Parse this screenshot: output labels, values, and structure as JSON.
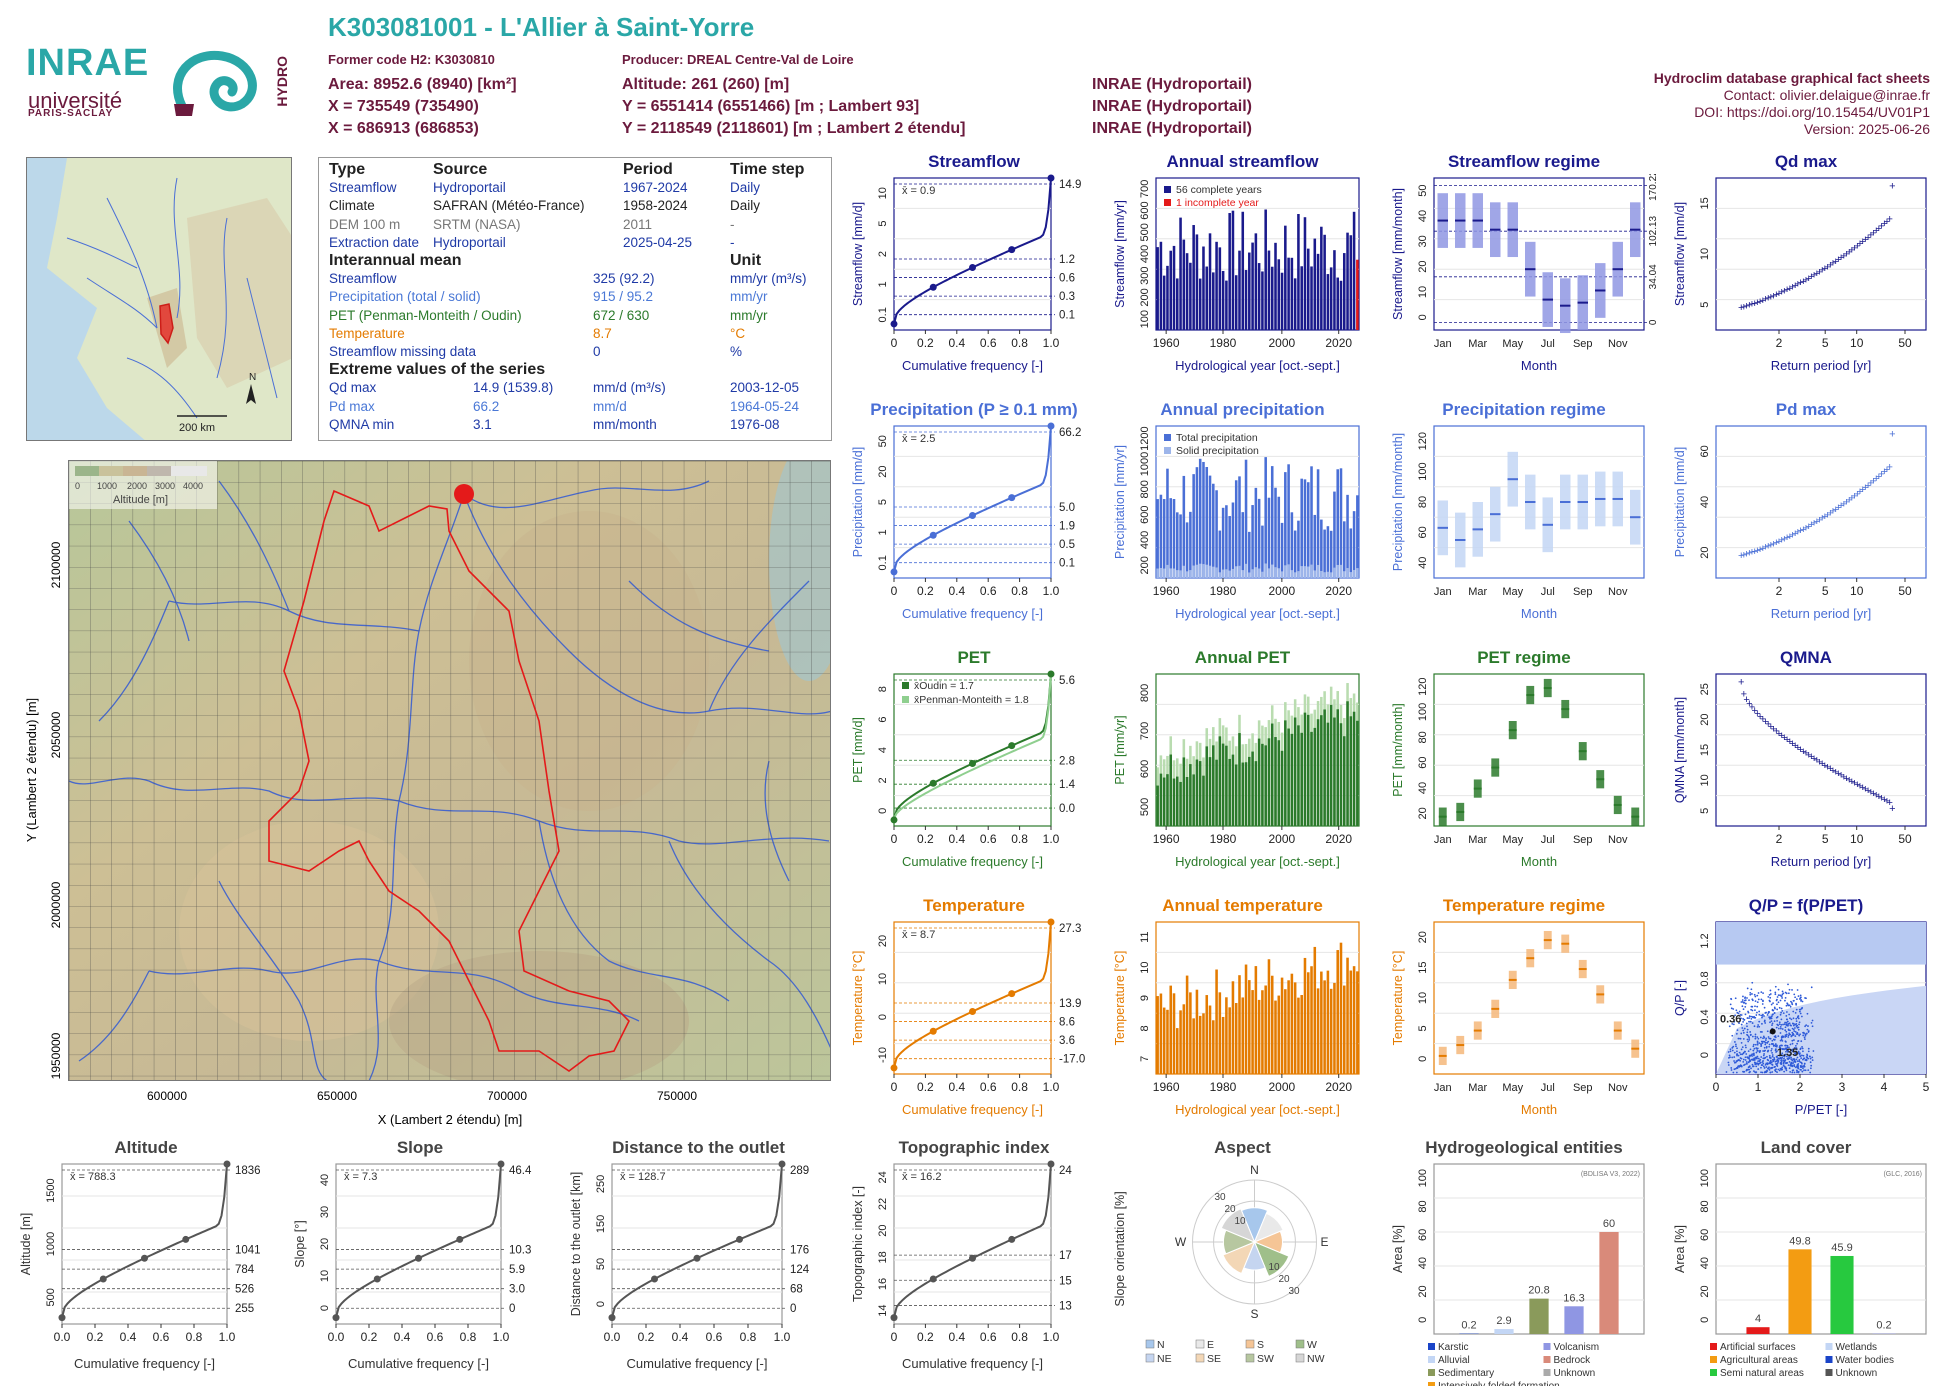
{
  "header": {
    "title": "K303081001 - L'Allier à Saint-Yorre",
    "former_code": "Former code H2: K3030810",
    "producer": "Producer: DREAL Centre-Val de Loire",
    "area": "Area: 8952.6 (8940) [km²]",
    "x93": "X = 735549 (735490)",
    "x2e": "X = 686913 (686853)",
    "altitude": "Altitude: 261 (260) [m]",
    "y93": "Y = 6551414 (6551466) [m ; Lambert 93]",
    "y2e": "Y = 2118549 (2118601) [m ; Lambert 2 étendu]",
    "src1": "INRAE (Hydroportail)",
    "src2": "INRAE (Hydroportail)",
    "src3": "INRAE (Hydroportail)",
    "db": "Hydroclim database graphical fact sheets",
    "contact": "Contact: olivier.delaigue@inrae.fr",
    "doi": "DOI: https://doi.org/10.15454/UV01P1",
    "version": "Version: 2025-06-26"
  },
  "logos": {
    "inrae": "INRAE",
    "univ": "université",
    "ps": "PARIS-SACLAY",
    "hydro": "HYDRO"
  },
  "minimap": {
    "scale": "200 km",
    "north": "N"
  },
  "info": {
    "head": [
      "Type",
      "Source",
      "Period",
      "Time step"
    ],
    "rows": [
      [
        "Streamflow",
        "Hydroportail",
        "1967-2024",
        "Daily"
      ],
      [
        "Climate",
        "SAFRAN (Météo-France)",
        "1958-2024",
        "Daily"
      ],
      [
        "DEM 100 m",
        "SRTM (NASA)",
        "2011",
        "-"
      ],
      [
        "Extraction date",
        "Hydroportail",
        "2025-04-25",
        "-"
      ]
    ],
    "mean_title": "Interannual mean",
    "unit_title": "Unit",
    "mean": [
      [
        "Streamflow",
        "325 (92.2)",
        "mm/yr (m³/s)"
      ],
      [
        "Precipitation (total / solid)",
        "915 / 95.2",
        "mm/yr"
      ],
      [
        "PET (Penman-Monteith / Oudin)",
        "672 / 630",
        "mm/yr"
      ],
      [
        "Temperature",
        "8.7",
        "°C"
      ],
      [
        "Streamflow missing data",
        "0",
        "%"
      ]
    ],
    "ext_title": "Extreme values of the series",
    "ext": [
      [
        "Qd max",
        "14.9 (1539.8)",
        "mm/d (m³/s)",
        "2003-12-05"
      ],
      [
        "Pd max",
        "66.2",
        "mm/d",
        "1964-05-24"
      ],
      [
        "QMNA min",
        "3.1",
        "mm/month",
        "1976-08"
      ]
    ]
  },
  "bigmap": {
    "legend_ticks": [
      "0",
      "1000",
      "2000",
      "3000",
      "4000"
    ],
    "legend_title": "Altitude [m]",
    "xticks": [
      "600000",
      "650000",
      "700000",
      "750000"
    ],
    "yticks": [
      "2100000",
      "2050000",
      "2000000",
      "1950000"
    ],
    "xlabel": "X (Lambert 2 étendu) [m]",
    "ylabel": "Y (Lambert 2 étendu) [m]"
  },
  "colors": {
    "streamflow": "#1a1a8c",
    "precip": "#4a6fd6",
    "pet": "#2b7a2b",
    "temp": "#e47b00",
    "grey": "#555555",
    "frame": "#7a8fd6"
  },
  "chart_data": [
    {
      "id": "streamflow-fdc",
      "type": "line",
      "title": "Streamflow",
      "ylabel": "Streamflow [mm/d]",
      "xlabel": "Cumulative frequency [-]",
      "mean_label": "x̄ = 0.9",
      "right_ticks": [
        "14.9",
        "1.2",
        "0.6",
        "0.3",
        "0.1"
      ],
      "xticks": [
        "0",
        "0.2",
        "0.4",
        "0.6",
        "0.8",
        "1.0"
      ],
      "yticks": [
        "0.1",
        "1",
        "2",
        "5",
        "10"
      ]
    },
    {
      "id": "annual-streamflow",
      "type": "bar",
      "title": "Annual streamflow",
      "ylabel": "Streamflow [mm/yr]",
      "xlabel": "Hydrological year [oct.-sept.]",
      "legend": [
        "56 complete years",
        "1 incomplete year"
      ],
      "xticks": [
        "1960",
        "1980",
        "2000",
        "2020"
      ],
      "yticks": [
        "100",
        "200",
        "300",
        "400",
        "500",
        "600",
        "700"
      ]
    },
    {
      "id": "streamflow-regime",
      "type": "bar",
      "title": "Streamflow regime",
      "ylabel": "Streamflow [mm/month]",
      "xlabel": "Month",
      "months": [
        "Jan",
        "Mar",
        "May",
        "Jul",
        "Sep",
        "Nov"
      ],
      "medians": [
        36,
        36,
        36,
        33,
        33,
        20,
        10,
        8,
        9,
        13,
        20,
        33
      ],
      "yticks": [
        "0",
        "10",
        "20",
        "30",
        "40",
        "50"
      ],
      "right_ticks": [
        "170.22",
        "102.13",
        "34.04",
        "0"
      ]
    },
    {
      "id": "qd-max",
      "type": "scatter",
      "title": "Qd max",
      "ylabel": "Streamflow [mm/d]",
      "xlabel": "Return period [yr]",
      "xticks": [
        "2",
        "5",
        "10",
        "50"
      ],
      "yticks": [
        "5",
        "10",
        "15"
      ]
    },
    {
      "id": "precip-fdc",
      "type": "line",
      "title": "Precipitation (P ≥ 0.1 mm)",
      "ylabel": "Precipitation [mm/d]",
      "xlabel": "Cumulative frequency [-]",
      "mean_label": "x̄ = 2.5",
      "right_ticks": [
        "66.2",
        "5.0",
        "1.9",
        "0.5",
        "0.1"
      ],
      "xticks": [
        "0",
        "0.2",
        "0.4",
        "0.6",
        "0.8",
        "1.0"
      ],
      "yticks": [
        "0.1",
        "1",
        "5",
        "20",
        "50"
      ]
    },
    {
      "id": "annual-precip",
      "type": "bar",
      "title": "Annual precipitation",
      "ylabel": "Precipitation [mm/yr]",
      "xlabel": "Hydrological year [oct.-sept.]",
      "legend": [
        "Total precipitation",
        "Solid precipitation"
      ],
      "xticks": [
        "1960",
        "1980",
        "2000",
        "2020"
      ],
      "yticks": [
        "200",
        "400",
        "600",
        "800",
        "1000",
        "1200"
      ]
    },
    {
      "id": "precip-regime",
      "type": "bar",
      "title": "Precipitation regime",
      "ylabel": "Precipitation [mm/month]",
      "xlabel": "Month",
      "months": [
        "Jan",
        "Mar",
        "May",
        "Jul",
        "Sep",
        "Nov"
      ],
      "medians": [
        63,
        55,
        62,
        72,
        95,
        80,
        65,
        80,
        80,
        82,
        82,
        70
      ],
      "yticks": [
        "40",
        "60",
        "80",
        "100",
        "120"
      ]
    },
    {
      "id": "pd-max",
      "type": "scatter",
      "title": "Pd max",
      "ylabel": "Precipitation [mm/d]",
      "xlabel": "Return period [yr]",
      "xticks": [
        "2",
        "5",
        "10",
        "50"
      ],
      "yticks": [
        "20",
        "40",
        "60"
      ]
    },
    {
      "id": "pet-fdc",
      "type": "line",
      "title": "PET",
      "ylabel": "PET [mm/d]",
      "xlabel": "Cumulative frequency [-]",
      "legend": [
        "x̄Oudin = 1.7",
        "x̄Penman-Monteith = 1.8"
      ],
      "right_ticks": [
        "5.6",
        "2.8",
        "1.4",
        "0.0"
      ],
      "xticks": [
        "0",
        "0.2",
        "0.4",
        "0.6",
        "0.8",
        "1.0"
      ],
      "yticks": [
        "0",
        "2",
        "4",
        "6",
        "8"
      ]
    },
    {
      "id": "annual-pet",
      "type": "bar",
      "title": "Annual PET",
      "ylabel": "PET [mm/yr]",
      "xlabel": "Hydrological year [oct.-sept.]",
      "xticks": [
        "1960",
        "1980",
        "2000",
        "2020"
      ],
      "yticks": [
        "500",
        "600",
        "700",
        "800"
      ]
    },
    {
      "id": "pet-regime",
      "type": "bar",
      "title": "PET regime",
      "ylabel": "PET [mm/month]",
      "xlabel": "Month",
      "months": [
        "Jan",
        "Mar",
        "May",
        "Jul",
        "Sep",
        "Nov"
      ],
      "medians": [
        8,
        12,
        32,
        50,
        82,
        112,
        118,
        100,
        64,
        40,
        18,
        8
      ],
      "yticks": [
        "20",
        "40",
        "60",
        "80",
        "100",
        "120"
      ]
    },
    {
      "id": "qmna",
      "type": "scatter",
      "title": "QMNA",
      "ylabel": "QMNA [mm/month]",
      "xlabel": "Return period [yr]",
      "xticks": [
        "2",
        "5",
        "10",
        "50"
      ],
      "yticks": [
        "5",
        "10",
        "15",
        "20",
        "25"
      ]
    },
    {
      "id": "temp-fdc",
      "type": "line",
      "title": "Temperature",
      "ylabel": "Temperature [°C]",
      "xlabel": "Cumulative frequency [-]",
      "mean_label": "x̄ = 8.7",
      "right_ticks": [
        "27.3",
        "13.9",
        "8.6",
        "3.6",
        "-17.0"
      ],
      "xticks": [
        "0",
        "0.2",
        "0.4",
        "0.6",
        "0.8",
        "1.0"
      ],
      "yticks": [
        "-10",
        "0",
        "10",
        "20"
      ]
    },
    {
      "id": "annual-temp",
      "type": "bar",
      "title": "Annual temperature",
      "ylabel": "Temperature [°C]",
      "xlabel": "Hydrological year [oct.-sept.]",
      "xticks": [
        "1960",
        "1980",
        "2000",
        "2020"
      ],
      "yticks": [
        "7",
        "8",
        "9",
        "10",
        "11"
      ]
    },
    {
      "id": "temp-regime",
      "type": "bar",
      "title": "Temperature regime",
      "ylabel": "Temperature [°C]",
      "xlabel": "Month",
      "months": [
        "Jan",
        "Mar",
        "May",
        "Jul",
        "Sep",
        "Nov"
      ],
      "medians": [
        1.5,
        3,
        5,
        8,
        12,
        15,
        17.5,
        17,
        13.5,
        10,
        5,
        2.5
      ],
      "yticks": [
        "0",
        "5",
        "10",
        "15",
        "20"
      ]
    },
    {
      "id": "qp-ppet",
      "type": "scatter",
      "title": "Q/P = f(P/PET)",
      "ylabel": "Q/P [-]",
      "xlabel": "P/PET [-]",
      "annot": [
        "0.36",
        "1.35"
      ],
      "xticks": [
        "0",
        "1",
        "2",
        "3",
        "4",
        "5"
      ],
      "yticks": [
        "0",
        "0.4",
        "0.8",
        "1.2"
      ]
    },
    {
      "id": "altitude",
      "type": "line",
      "title": "Altitude",
      "ylabel": "Altitude [m]",
      "xlabel": "Cumulative frequency [-]",
      "mean_label": "x̄ = 788.3",
      "right_ticks": [
        "1836",
        "1041",
        "784",
        "526",
        "255"
      ],
      "xticks": [
        "0.0",
        "0.2",
        "0.4",
        "0.6",
        "0.8",
        "1.0"
      ],
      "yticks": [
        "500",
        "1000",
        "1500"
      ]
    },
    {
      "id": "slope",
      "type": "line",
      "title": "Slope",
      "ylabel": "Slope [°]",
      "xlabel": "Cumulative frequency [-]",
      "mean_label": "x̄ = 7.3",
      "right_ticks": [
        "46.4",
        "10.3",
        "5.9",
        "3.0",
        "0"
      ],
      "xticks": [
        "0.0",
        "0.2",
        "0.4",
        "0.6",
        "0.8",
        "1.0"
      ],
      "yticks": [
        "0",
        "10",
        "20",
        "30",
        "40"
      ]
    },
    {
      "id": "distance",
      "type": "line",
      "title": "Distance to the outlet",
      "ylabel": "Distance to the outlet [km]",
      "xlabel": "Cumulative frequency [-]",
      "mean_label": "x̄ = 128.7",
      "right_ticks": [
        "289",
        "176",
        "124",
        "68",
        "0"
      ],
      "xticks": [
        "0.0",
        "0.2",
        "0.4",
        "0.6",
        "0.8",
        "1.0"
      ],
      "yticks": [
        "0",
        "50",
        "150",
        "250"
      ]
    },
    {
      "id": "topo-index",
      "type": "line",
      "title": "Topographic index",
      "ylabel": "Topographic index [-]",
      "xlabel": "Cumulative frequency [-]",
      "mean_label": "x̄ = 16.2",
      "right_ticks": [
        "24",
        "17",
        "15",
        "13"
      ],
      "xticks": [
        "0",
        "0.2",
        "0.4",
        "0.6",
        "0.8",
        "1.0"
      ],
      "yticks": [
        "14",
        "16",
        "18",
        "20",
        "22",
        "24"
      ]
    },
    {
      "id": "aspect",
      "type": "pie",
      "title": "Aspect",
      "ylabel": "Slope orientation [%]",
      "dirs": [
        "N",
        "E",
        "S",
        "W"
      ],
      "rings": [
        "10",
        "20",
        "30"
      ],
      "legend": [
        "N",
        "E",
        "S",
        "W",
        "NE",
        "SE",
        "SW",
        "NW"
      ]
    },
    {
      "id": "hydrogeo",
      "type": "bar",
      "title": "Hydrogeological entities",
      "ylabel": "Area [%]",
      "source": "(BDLISA V3, 2022)",
      "values": [
        0.2,
        2.9,
        20.8,
        16.3,
        60
      ],
      "labels": [
        "0.2",
        "2.9",
        "20.8",
        "16.3",
        "60"
      ],
      "legend": [
        "Karstic",
        "Volcanism",
        "Alluvial",
        "Bedrock",
        "Sedimentary",
        "Unknown",
        "Intensively folded formation"
      ],
      "yticks": [
        "0",
        "20",
        "40",
        "60",
        "80",
        "100"
      ]
    },
    {
      "id": "landcover",
      "type": "bar",
      "title": "Land cover",
      "ylabel": "Area [%]",
      "source": "(GLC, 2016)",
      "values": [
        4,
        49.8,
        45.9,
        0.2
      ],
      "labels": [
        "4",
        "49.8",
        "45.9",
        "0.2"
      ],
      "legend": [
        "Artificial surfaces",
        "Wetlands",
        "Agricultural areas",
        "Water bodies",
        "Semi natural areas",
        "Unknown"
      ],
      "yticks": [
        "0",
        "20",
        "40",
        "60",
        "80",
        "100"
      ]
    }
  ]
}
